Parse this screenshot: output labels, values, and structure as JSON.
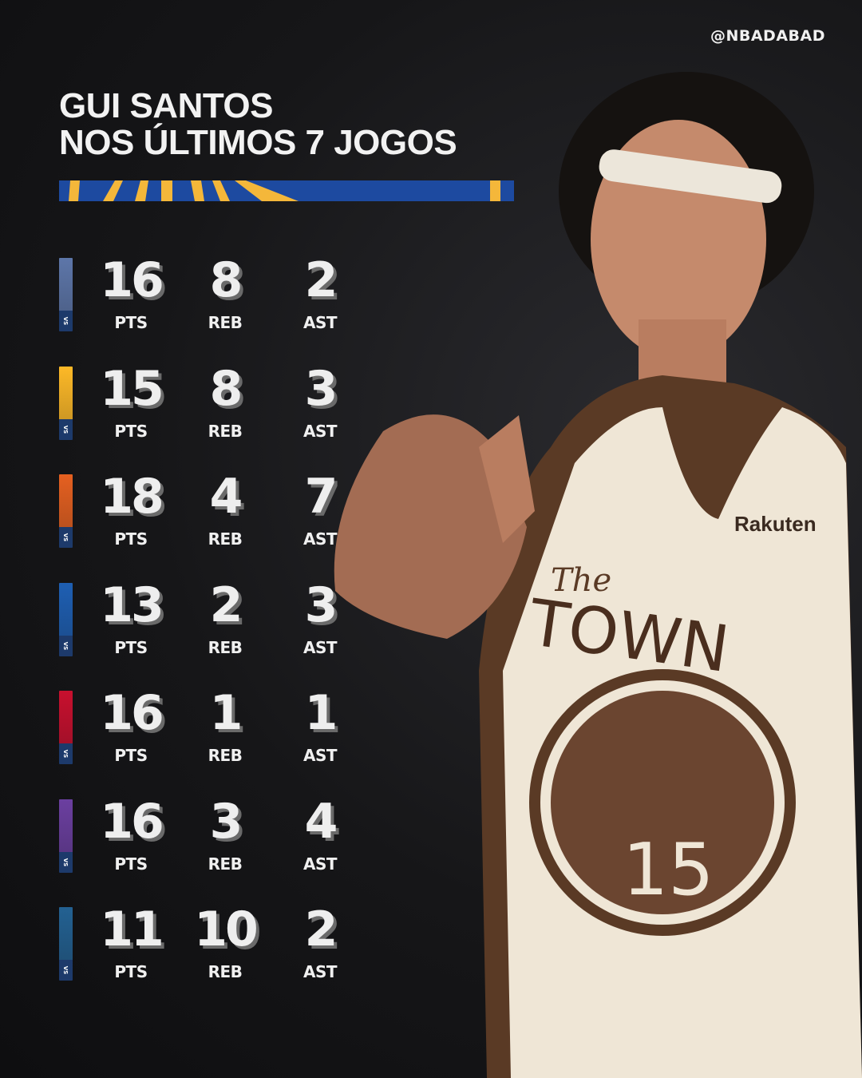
{
  "handle": "@NBADABAD",
  "title": {
    "line1": "GUI SANTOS",
    "line2": "NOS ÚLTIMOS 7 JOGOS"
  },
  "colors": {
    "banner_blue": "#1d4aa0",
    "banner_gold": "#f4b73a",
    "background": "#111114",
    "vs_navy": "#1d3a6b"
  },
  "stat_labels": {
    "pts": "PTS",
    "reb": "REB",
    "ast": "AST"
  },
  "vs_label": "VS",
  "games": [
    {
      "opponent_logo": "grizzlies-logo",
      "color": "#5d76a9",
      "pts": "16",
      "reb": "8",
      "ast": "2"
    },
    {
      "opponent_logo": "lakers-logo",
      "color": "#fdb927",
      "pts": "15",
      "reb": "8",
      "ast": "3"
    },
    {
      "opponent_logo": "suns-logo",
      "color": "#e56020",
      "pts": "18",
      "reb": "4",
      "ast": "7"
    },
    {
      "opponent_logo": "76ers-logo",
      "color": "#1e5fb3",
      "pts": "13",
      "reb": "2",
      "ast": "3"
    },
    {
      "opponent_logo": "pistons-logo",
      "color": "#c8102e",
      "pts": "16",
      "reb": "1",
      "ast": "1"
    },
    {
      "opponent_logo": "jazz-logo",
      "color": "#6b3fa0",
      "pts": "16",
      "reb": "3",
      "ast": "4"
    },
    {
      "opponent_logo": "timberwolves-logo",
      "color": "#236192",
      "pts": "11",
      "reb": "10",
      "ast": "2"
    }
  ],
  "jersey": {
    "wordmark_top": "The",
    "wordmark": "TOWN",
    "number": "15",
    "sponsor": "Rakuten"
  }
}
